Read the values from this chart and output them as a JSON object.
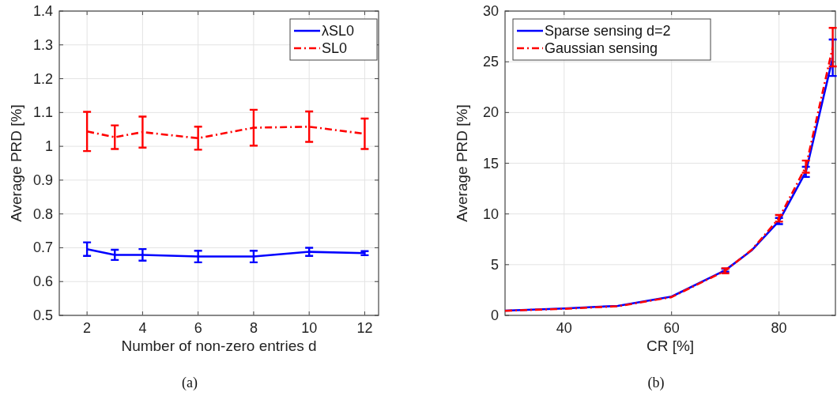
{
  "chart_data": [
    {
      "type": "line",
      "xlabel": "Number of non-zero entries d",
      "ylabel": "Average PRD [%]",
      "x": [
        2,
        3,
        4,
        6,
        8,
        10,
        12
      ],
      "xlim": [
        1,
        12.5
      ],
      "xticks": [
        2,
        4,
        6,
        8,
        10,
        12
      ],
      "ylim": [
        0.5,
        1.4
      ],
      "yticks": [
        0.5,
        0.6,
        0.7,
        0.8,
        0.9,
        1,
        1.1,
        1.2,
        1.3,
        1.4
      ],
      "grid": true,
      "legend": "top right",
      "annotations": [
        "(a)"
      ],
      "series": [
        {
          "name": "λSL0",
          "color": "#0000ff",
          "line_style": "solid",
          "values": [
            0.696,
            0.679,
            0.679,
            0.674,
            0.674,
            0.688,
            0.684
          ],
          "errors": [
            0.02,
            0.015,
            0.017,
            0.017,
            0.017,
            0.012,
            0.006
          ]
        },
        {
          "name": "SL0",
          "color": "#ff0000",
          "line_style": "dashed",
          "values": [
            1.044,
            1.027,
            1.042,
            1.024,
            1.055,
            1.058,
            1.037
          ],
          "errors": [
            0.058,
            0.035,
            0.046,
            0.034,
            0.053,
            0.045,
            0.045
          ]
        }
      ]
    },
    {
      "type": "line",
      "xlabel": "CR [%]",
      "ylabel": "Average PRD [%]",
      "x": [
        29,
        40,
        50,
        60,
        70,
        75,
        80,
        85,
        90
      ],
      "xlim": [
        29,
        90.5
      ],
      "xticks": [
        40,
        60,
        80
      ],
      "ylim": [
        0,
        30
      ],
      "yticks": [
        0,
        5,
        10,
        15,
        20,
        25,
        30
      ],
      "grid": true,
      "legend": "top left",
      "annotations": [
        "(b)"
      ],
      "series": [
        {
          "name": "Sparse sensing d=2",
          "color": "#0000ff",
          "line_style": "solid",
          "values": [
            0.47,
            0.68,
            0.94,
            1.85,
            4.45,
            6.45,
            9.3,
            14.15,
            25.4
          ],
          "errors": [
            null,
            null,
            null,
            null,
            0.15,
            null,
            0.3,
            0.5,
            1.8
          ]
        },
        {
          "name": "Gaussian sensing",
          "color": "#ff0000",
          "line_style": "dashed",
          "values": [
            0.45,
            0.65,
            0.9,
            1.8,
            4.4,
            6.5,
            9.57,
            14.66,
            26.45
          ],
          "errors": [
            null,
            null,
            null,
            null,
            0.25,
            null,
            0.33,
            0.6,
            1.9
          ]
        }
      ]
    }
  ]
}
